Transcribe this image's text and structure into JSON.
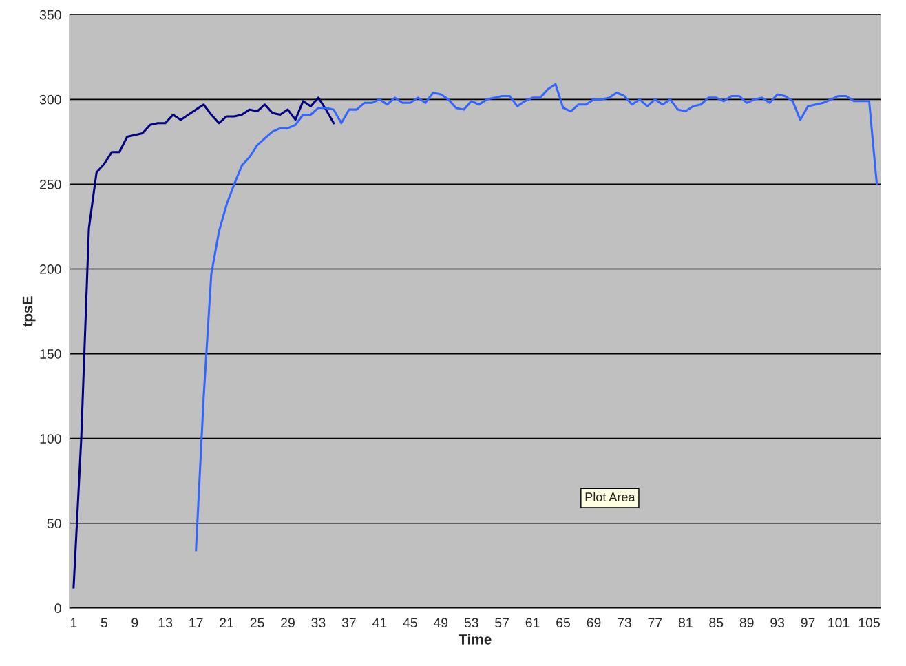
{
  "chart_data": {
    "type": "line",
    "xlabel": "Time",
    "ylabel": "tpsE",
    "categories": [
      "1",
      null,
      null,
      null,
      "5",
      null,
      null,
      null,
      "9",
      null,
      null,
      null,
      "13",
      null,
      null,
      null,
      "17",
      null,
      null,
      null,
      "21",
      null,
      null,
      null,
      "25",
      null,
      null,
      null,
      "29",
      null,
      null,
      null,
      "33",
      null,
      null,
      null,
      "37",
      null,
      null,
      null,
      "41",
      null,
      null,
      null,
      "45",
      null,
      null,
      null,
      "49",
      null,
      null,
      null,
      "53",
      null,
      null,
      null,
      "57",
      null,
      null,
      null,
      "61",
      null,
      null,
      null,
      "65",
      null,
      null,
      null,
      "69",
      null,
      null,
      null,
      "73",
      null,
      null,
      null,
      "77",
      null,
      null,
      null,
      "81",
      null,
      null,
      null,
      "85",
      null,
      null,
      null,
      "89",
      null,
      null,
      null,
      "93",
      null,
      null,
      null,
      "97",
      null,
      null,
      null,
      "101",
      null,
      null,
      null,
      "105",
      null
    ],
    "series": [
      {
        "color": "#000080",
        "values": [
          12,
          100,
          224,
          257,
          262,
          269,
          269,
          278,
          279,
          280,
          285,
          286,
          286,
          291,
          288,
          291,
          294,
          297,
          291,
          286,
          290,
          290,
          291,
          294,
          293,
          297,
          292,
          291,
          294,
          288,
          299,
          296,
          301,
          294,
          286,
          null,
          null,
          null,
          null,
          null,
          null,
          null,
          null,
          null,
          null,
          null,
          null,
          null,
          null,
          null,
          null,
          null,
          null,
          null,
          null,
          null,
          null,
          null,
          null,
          null,
          null,
          null,
          null,
          null,
          null,
          null,
          null,
          null,
          null,
          null,
          null,
          null,
          null,
          null,
          null,
          null,
          null,
          null,
          null,
          null,
          null,
          null,
          null,
          null,
          null,
          null,
          null,
          null,
          null,
          null,
          null,
          null,
          null,
          null,
          null,
          null,
          null,
          null,
          null,
          null,
          null,
          null,
          null,
          null,
          null,
          null
        ]
      },
      {
        "color": "#3366ff",
        "values": [
          null,
          null,
          null,
          null,
          null,
          null,
          null,
          null,
          null,
          null,
          null,
          null,
          null,
          null,
          null,
          null,
          34,
          124,
          197,
          222,
          238,
          250,
          261,
          266,
          273,
          277,
          281,
          283,
          283,
          285,
          291,
          291,
          295,
          295,
          294,
          286,
          294,
          294,
          298,
          298,
          300,
          297,
          301,
          298,
          298,
          301,
          298,
          304,
          303,
          300,
          295,
          294,
          299,
          297,
          300,
          301,
          302,
          302,
          296,
          299,
          301,
          301,
          306,
          309,
          295,
          293,
          297,
          297,
          300,
          300,
          301,
          304,
          302,
          297,
          300,
          296,
          300,
          297,
          300,
          294,
          293,
          296,
          297,
          301,
          301,
          299,
          302,
          302,
          298,
          300,
          301,
          298,
          303,
          302,
          299,
          288,
          296,
          297,
          298,
          300,
          302,
          302,
          299,
          299,
          299,
          250
        ]
      }
    ],
    "ylim": [
      0,
      350
    ],
    "yticks": [
      0,
      50,
      100,
      150,
      200,
      250,
      300,
      350
    ],
    "grid": "y",
    "annotations": [
      "Plot Area"
    ]
  }
}
